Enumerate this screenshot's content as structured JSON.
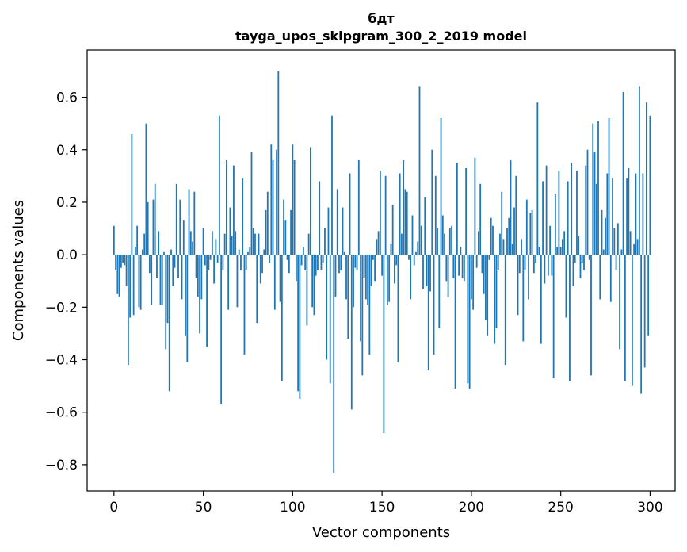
{
  "chart_data": {
    "type": "bar",
    "title_line1": "бдт",
    "title_line2": "tayga_upos_skipgram_300_2_2019 model",
    "xlabel": "Vector components",
    "ylabel": "Components values",
    "xlim": [
      -15,
      314
    ],
    "ylim": [
      -0.9,
      0.78
    ],
    "bar_color": "#1f77b4",
    "x_ticks": [
      {
        "value": 0,
        "label": "0"
      },
      {
        "value": 50,
        "label": "50"
      },
      {
        "value": 100,
        "label": "100"
      },
      {
        "value": 150,
        "label": "150"
      },
      {
        "value": 200,
        "label": "200"
      },
      {
        "value": 250,
        "label": "250"
      },
      {
        "value": 300,
        "label": "300"
      }
    ],
    "y_ticks": [
      {
        "value": -0.8,
        "label": "−0.8"
      },
      {
        "value": -0.6,
        "label": "−0.6"
      },
      {
        "value": -0.4,
        "label": "−0.4"
      },
      {
        "value": -0.2,
        "label": "−0.2"
      },
      {
        "value": 0.0,
        "label": "0.0"
      },
      {
        "value": 0.2,
        "label": "0.2"
      },
      {
        "value": 0.4,
        "label": "0.4"
      },
      {
        "value": 0.6,
        "label": "0.6"
      }
    ],
    "values": [
      0.11,
      -0.06,
      -0.15,
      -0.16,
      -0.05,
      -0.03,
      -0.04,
      -0.12,
      -0.42,
      -0.24,
      0.46,
      -0.23,
      0.03,
      0.11,
      -0.2,
      -0.21,
      0.02,
      0.08,
      0.5,
      0.2,
      -0.07,
      -0.19,
      0.21,
      0.27,
      -0.09,
      0.09,
      -0.19,
      -0.19,
      0.01,
      -0.36,
      -0.26,
      -0.52,
      0.02,
      -0.12,
      -0.05,
      0.27,
      -0.09,
      0.21,
      -0.17,
      0.13,
      -0.31,
      -0.41,
      0.25,
      0.09,
      0.05,
      0.24,
      -0.09,
      -0.16,
      -0.3,
      -0.17,
      0.1,
      -0.04,
      -0.35,
      -0.06,
      -0.02,
      0.09,
      -0.11,
      0.06,
      -0.03,
      0.53,
      -0.57,
      -0.06,
      0.08,
      0.36,
      -0.21,
      0.18,
      0.07,
      0.34,
      0.09,
      -0.2,
      0.02,
      -0.06,
      0.29,
      -0.38,
      -0.06,
      0.01,
      0.03,
      0.39,
      0.1,
      0.08,
      -0.26,
      0.08,
      -0.11,
      -0.07,
      0.02,
      0.17,
      0.24,
      -0.03,
      0.42,
      0.36,
      -0.21,
      0.4,
      0.7,
      -0.18,
      -0.48,
      0.21,
      0.13,
      -0.02,
      -0.07,
      0.17,
      0.42,
      0.36,
      -0.1,
      -0.52,
      -0.55,
      -0.04,
      0.03,
      -0.06,
      -0.27,
      0.08,
      0.41,
      -0.2,
      -0.23,
      -0.08,
      -0.06,
      0.28,
      -0.06,
      -0.03,
      0.1,
      -0.4,
      0.18,
      -0.49,
      0.53,
      -0.83,
      -0.16,
      0.25,
      -0.07,
      -0.06,
      0.18,
      0.01,
      -0.17,
      -0.32,
      0.31,
      -0.59,
      -0.2,
      -0.05,
      -0.06,
      0.36,
      -0.33,
      -0.46,
      -0.09,
      -0.17,
      -0.19,
      -0.38,
      -0.12,
      -0.02,
      -0.1,
      0.06,
      0.09,
      0.32,
      -0.08,
      -0.68,
      0.3,
      -0.19,
      -0.18,
      0.04,
      0.19,
      -0.11,
      -0.04,
      -0.41,
      0.31,
      0.08,
      0.36,
      0.25,
      0.24,
      -0.02,
      -0.17,
      0.15,
      -0.04,
      0.01,
      0.05,
      0.64,
      0.11,
      -0.13,
      0.22,
      -0.12,
      -0.44,
      -0.14,
      0.4,
      -0.38,
      0.3,
      0.1,
      -0.28,
      0.52,
      0.15,
      0.08,
      -0.1,
      -0.16,
      0.1,
      0.11,
      -0.09,
      -0.51,
      0.35,
      -0.08,
      0.03,
      -0.09,
      -0.1,
      0.33,
      -0.49,
      -0.51,
      -0.17,
      -0.21,
      0.37,
      -0.05,
      0.09,
      0.27,
      -0.07,
      -0.15,
      -0.25,
      -0.31,
      -0.02,
      0.14,
      0.11,
      -0.34,
      -0.28,
      -0.06,
      0.08,
      0.24,
      0.06,
      -0.42,
      0.1,
      0.14,
      0.36,
      0.04,
      0.18,
      0.3,
      -0.23,
      -0.07,
      0.06,
      -0.33,
      -0.06,
      0.21,
      -0.17,
      0.16,
      0.17,
      -0.07,
      -0.03,
      0.58,
      0.03,
      -0.34,
      0.28,
      -0.11,
      0.34,
      -0.08,
      0.11,
      -0.08,
      -0.47,
      0.23,
      0.03,
      0.32,
      0.03,
      0.06,
      0.09,
      -0.24,
      0.28,
      -0.48,
      0.35,
      -0.12,
      -0.03,
      0.32,
      0.07,
      -0.09,
      -0.03,
      -0.06,
      0.34,
      0.4,
      -0.02,
      -0.46,
      0.5,
      0.39,
      0.27,
      0.51,
      -0.17,
      0.17,
      0.02,
      0.14,
      0.31,
      0.52,
      -0.18,
      0.29,
      0.1,
      -0.06,
      0.12,
      -0.36,
      0.02,
      0.62,
      -0.48,
      0.29,
      0.33,
      0.09,
      -0.5,
      0.04,
      0.31,
      0.06,
      0.64,
      -0.53,
      0.31,
      -0.43,
      0.58,
      -0.31,
      0.53
    ]
  }
}
